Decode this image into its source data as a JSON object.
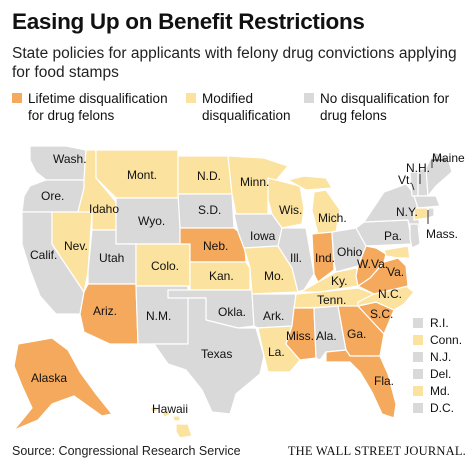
{
  "title": "Easing Up on Benefit Restrictions",
  "subtitle": "State policies for applicants with felony drug convictions applying for food stamps",
  "colors": {
    "lifetime": "#f4a95c",
    "modified": "#fbe29f",
    "none": "#d9d9d9"
  },
  "legend": {
    "lifetime": "Lifetime disqualification for drug felons",
    "modified": "Modified disqualification",
    "none": "No disqualification for drug felons"
  },
  "states": {
    "wa": "Wash.",
    "or": "Ore.",
    "ca": "Calif.",
    "nv": "Nev.",
    "id": "Idaho",
    "mt": "Mont.",
    "wy": "Wyo.",
    "ut": "Utah",
    "az": "Ariz.",
    "co": "Colo.",
    "nm": "N.M.",
    "nd": "N.D.",
    "sd": "S.D.",
    "ne": "Neb.",
    "ks": "Kan.",
    "ok": "Okla.",
    "tx": "Texas",
    "mn": "Minn.",
    "ia": "Iowa",
    "mo": "Mo.",
    "ar": "Ark.",
    "la": "La.",
    "wi": "Wis.",
    "il": "Ill.",
    "mi": "Mich.",
    "in": "Ind.",
    "oh": "Ohio",
    "ky": "Ky.",
    "tn": "Tenn.",
    "ms": "Miss.",
    "al": "Ala.",
    "ga": "Ga.",
    "fl": "Fla.",
    "sc": "S.C.",
    "nc": "N.C.",
    "va": "Va.",
    "wv": "W.Va.",
    "pa": "Pa.",
    "ny": "N.Y.",
    "vt": "Vt.",
    "nh": "N.H.",
    "me": "Maine",
    "ma": "Mass.",
    "ak": "Alaska",
    "hi": "Hawaii"
  },
  "small_states": [
    {
      "label": "R.I.",
      "policy": "none"
    },
    {
      "label": "Conn.",
      "policy": "modified"
    },
    {
      "label": "N.J.",
      "policy": "none"
    },
    {
      "label": "Del.",
      "policy": "none"
    },
    {
      "label": "Md.",
      "policy": "modified"
    },
    {
      "label": "D.C.",
      "policy": "none"
    }
  ],
  "source": "Source: Congressional Research Service",
  "credit": "THE WALL STREET JOURNAL."
}
